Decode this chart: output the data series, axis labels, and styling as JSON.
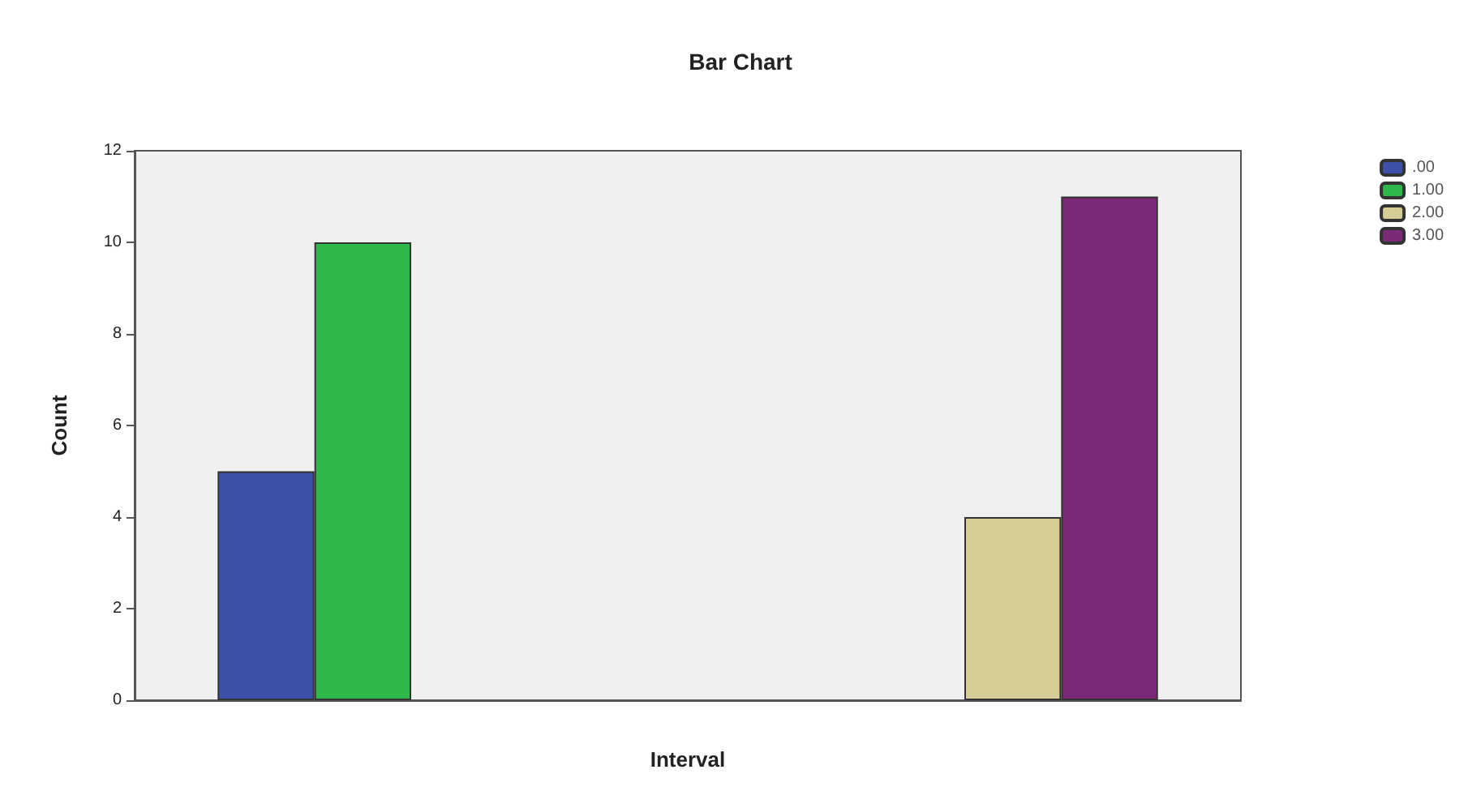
{
  "chart_data": {
    "type": "bar",
    "title": "Bar Chart",
    "xlabel": "Interval",
    "ylabel": "Count",
    "categories": [
      null,
      null
    ],
    "series": [
      {
        "name": ".00",
        "color": "#3e50a8",
        "values": [
          5,
          null
        ]
      },
      {
        "name": "1.00",
        "color": "#2fb84a",
        "values": [
          10,
          null
        ]
      },
      {
        "name": "2.00",
        "color": "#d6cc96",
        "values": [
          null,
          4
        ]
      },
      {
        "name": "3.00",
        "color": "#7b2a78",
        "values": [
          null,
          11
        ]
      }
    ],
    "ylim": [
      0,
      12
    ],
    "yticks": [
      0,
      2,
      4,
      6,
      8,
      10,
      12
    ],
    "grid": false,
    "legend": "top right"
  }
}
